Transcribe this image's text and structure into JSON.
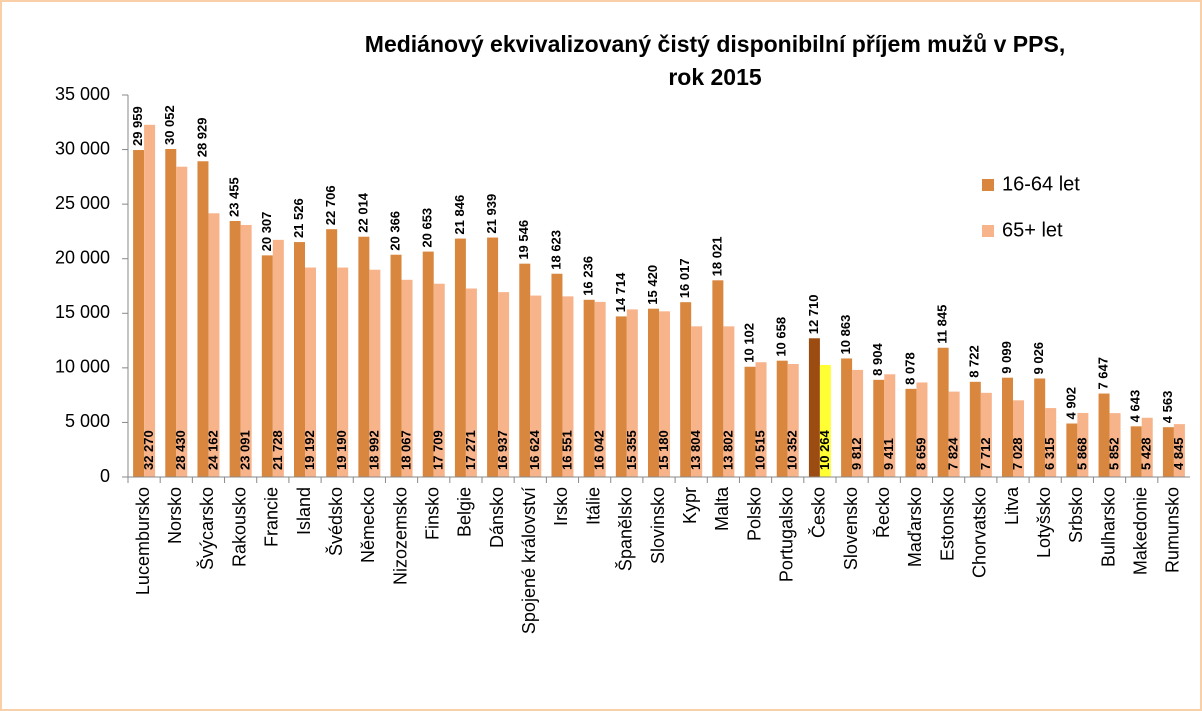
{
  "chart_data": {
    "type": "bar",
    "title": [
      "Mediánový ekvivalizovaný čistý disponibilní příjem mužů v PPS,",
      "rok 2015"
    ],
    "categories": [
      "Lucembursko",
      "Norsko",
      "Švýcarsko",
      "Rakousko",
      "Francie",
      "Island",
      "Švédsko",
      "Německo",
      "Nizozemsko",
      "Finsko",
      "Belgie",
      "Dánsko",
      "Spojené království",
      "Irsko",
      "Itálie",
      "Španělsko",
      "Slovinsko",
      "Kypr",
      "Malta",
      "Polsko",
      "Portugalsko",
      "Česko",
      "Slovensko",
      "Řecko",
      "Maďarsko",
      "Estonsko",
      "Chorvatsko",
      "Litva",
      "Lotyšsko",
      "Srbsko",
      "Bulharsko",
      "Makedonie",
      "Rumunsko"
    ],
    "series": [
      {
        "name": "16-64 let",
        "color": "#d9873f",
        "colors": [
          "#d9873f",
          "#d9873f",
          "#d9873f",
          "#d9873f",
          "#d9873f",
          "#d9873f",
          "#d9873f",
          "#d9873f",
          "#d9873f",
          "#d9873f",
          "#d9873f",
          "#d9873f",
          "#d9873f",
          "#d9873f",
          "#d9873f",
          "#d9873f",
          "#d9873f",
          "#d9873f",
          "#d9873f",
          "#d9873f",
          "#d9873f",
          "#9c4c10",
          "#d9873f",
          "#d9873f",
          "#d9873f",
          "#d9873f",
          "#d9873f",
          "#d9873f",
          "#d9873f",
          "#d9873f",
          "#d9873f",
          "#d9873f",
          "#d9873f"
        ],
        "values": [
          29959,
          30052,
          28929,
          23455,
          20307,
          21526,
          22706,
          22014,
          20366,
          20653,
          21846,
          21939,
          19546,
          18623,
          16236,
          14714,
          15420,
          16017,
          18021,
          10102,
          10658,
          12710,
          10863,
          8904,
          8078,
          11845,
          8722,
          9099,
          9026,
          4902,
          7647,
          4643,
          4563
        ],
        "value_labels": [
          "29 959",
          "30 052",
          "28 929",
          "23 455",
          "20 307",
          "21 526",
          "22 706",
          "22 014",
          "20 366",
          "20 653",
          "21 846",
          "21 939",
          "19 546",
          "18 623",
          "16 236",
          "14 714",
          "15 420",
          "16 017",
          "18 021",
          "10 102",
          "10 658",
          "12 710",
          "10 863",
          "8 904",
          "8 078",
          "11 845",
          "8 722",
          "9 099",
          "9 026",
          "4 902",
          "7 647",
          "4 643",
          "4 563"
        ]
      },
      {
        "name": "65+ let",
        "color": "#f7b38a",
        "colors": [
          "#f7b38a",
          "#f7b38a",
          "#f7b38a",
          "#f7b38a",
          "#f7b38a",
          "#f7b38a",
          "#f7b38a",
          "#f7b38a",
          "#f7b38a",
          "#f7b38a",
          "#f7b38a",
          "#f7b38a",
          "#f7b38a",
          "#f7b38a",
          "#f7b38a",
          "#f7b38a",
          "#f7b38a",
          "#f7b38a",
          "#f7b38a",
          "#f7b38a",
          "#f7b38a",
          "#ffff33",
          "#f7b38a",
          "#f7b38a",
          "#f7b38a",
          "#f7b38a",
          "#f7b38a",
          "#f7b38a",
          "#f7b38a",
          "#f7b38a",
          "#f7b38a",
          "#f7b38a",
          "#f7b38a"
        ],
        "values": [
          32270,
          28430,
          24162,
          23091,
          21728,
          19192,
          19190,
          18992,
          18067,
          17709,
          17271,
          16937,
          16624,
          16551,
          16042,
          15355,
          15180,
          13804,
          13802,
          10515,
          10352,
          10264,
          9812,
          9411,
          8659,
          7824,
          7712,
          7028,
          6315,
          5868,
          5852,
          5428,
          4845
        ],
        "value_labels": [
          "32 270",
          "28 430",
          "24 162",
          "23 091",
          "21 728",
          "19 192",
          "19 190",
          "18 992",
          "18 067",
          "17 709",
          "17 271",
          "16 937",
          "16 624",
          "16 551",
          "16 042",
          "15 355",
          "15 180",
          "13 804",
          "13 802",
          "10 515",
          "10 352",
          "10 264",
          "9 812",
          "9 411",
          "8 659",
          "7 824",
          "7 712",
          "7 028",
          "6 315",
          "5 868",
          "5 852",
          "5 428",
          "4 845"
        ]
      }
    ],
    "ylim": [
      0,
      35000
    ],
    "yticks": [
      0,
      {
        "value": 5000,
        "label": "5 000"
      },
      {
        "value": 10000,
        "label": "10 000"
      },
      {
        "value": 15000,
        "label": "15 000"
      },
      {
        "value": 20000,
        "label": "20 000"
      },
      {
        "value": 25000,
        "label": "25 000"
      },
      {
        "value": 30000,
        "label": "30 000"
      },
      {
        "value": 35000,
        "label": "35 000"
      }
    ],
    "grid": false,
    "legend": "right"
  }
}
